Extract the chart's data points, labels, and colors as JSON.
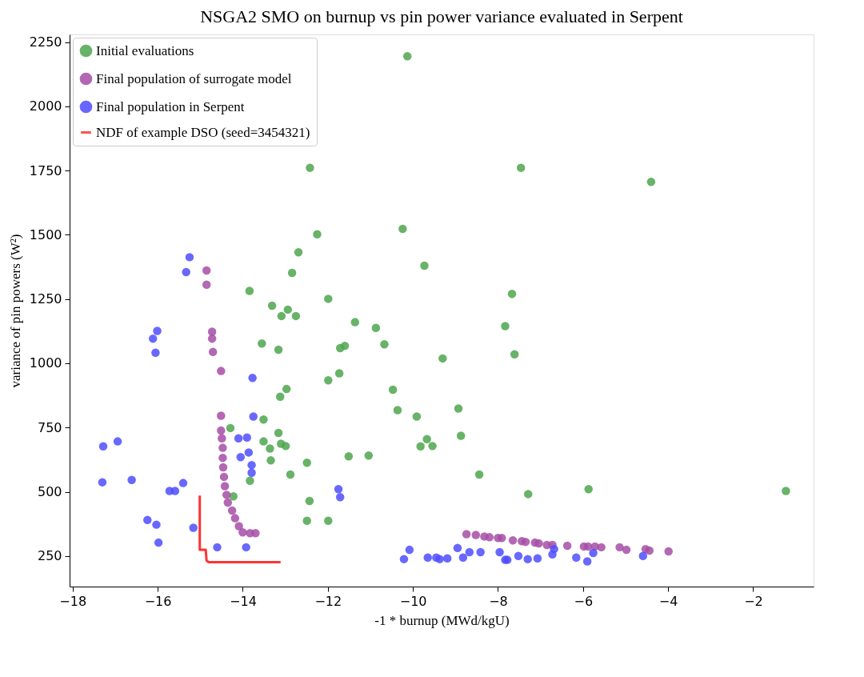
{
  "chart_data": {
    "type": "scatter",
    "title": "NSGA2 SMO on burnup vs pin power variance evaluated in Serpent",
    "xlabel": "-1 * burnup (MWd/kgU)",
    "ylabel": "variance of pin powers (W²)",
    "xlim": [
      -18.07,
      -0.58
    ],
    "ylim": [
      131,
      2280
    ],
    "xticks": [
      -18,
      -16,
      -14,
      -12,
      -10,
      -8,
      -6,
      -4,
      -2
    ],
    "yticks": [
      250,
      500,
      750,
      1000,
      1250,
      1500,
      1750,
      2000,
      2250
    ],
    "grid": false,
    "legend": "top left",
    "series": [
      {
        "name": "Initial evaluations",
        "color": "#4da64d",
        "marker": "circle",
        "x": [
          -10.13,
          -12.42,
          -7.46,
          -4.4,
          -10.24,
          -12.25,
          -9.73,
          -12.69,
          -12.84,
          -13.84,
          -11.99,
          -7.67,
          -13.31,
          -12.94,
          -13.09,
          -12.75,
          -11.36,
          -10.87,
          -7.83,
          -13.55,
          -11.6,
          -11.71,
          -10.67,
          -13.16,
          -9.3,
          -7.61,
          -11.99,
          -11.73,
          -10.47,
          -12.97,
          -13.12,
          -10.36,
          -9.91,
          -8.93,
          -13.51,
          -14.29,
          -13.16,
          -13.51,
          -13.1,
          -12.99,
          -9.67,
          -8.87,
          -9.82,
          -9.54,
          -13.36,
          -13.34,
          -12.49,
          -11.51,
          -11.04,
          -12.88,
          -8.44,
          -13.83,
          -14.22,
          -5.87,
          -1.23,
          -7.29,
          -12.43,
          -12.49,
          -11.99
        ],
        "values": [
          2195,
          1761,
          1761,
          1706,
          1523,
          1502,
          1380,
          1432,
          1352,
          1282,
          1251,
          1270,
          1224,
          1209,
          1184,
          1184,
          1160,
          1138,
          1145,
          1077,
          1068,
          1059,
          1074,
          1053,
          1019,
          1035,
          934,
          961,
          897,
          900,
          870,
          818,
          793,
          824,
          781,
          748,
          729,
          696,
          687,
          678,
          705,
          718,
          677,
          678,
          668,
          622,
          613,
          638,
          641,
          567,
          567,
          543,
          482,
          510,
          503,
          491,
          464,
          387,
          387
        ]
      },
      {
        "name": "Final population of surrogate model",
        "color": "#a64da6",
        "marker": "circle",
        "x": [
          -14.85,
          -14.85,
          -14.72,
          -14.72,
          -14.7,
          -14.51,
          -14.51,
          -14.51,
          -14.49,
          -14.47,
          -14.47,
          -14.46,
          -14.44,
          -14.42,
          -14.38,
          -14.35,
          -14.25,
          -14.18,
          -14.09,
          -14.0,
          -13.83,
          -13.7,
          -8.74,
          -8.52,
          -8.32,
          -8.2,
          -8.0,
          -7.91,
          -7.65,
          -7.44,
          -7.35,
          -7.13,
          -7.04,
          -6.85,
          -6.72,
          -6.37,
          -5.98,
          -5.88,
          -5.72,
          -5.57,
          -5.14,
          -4.98,
          -4.53,
          -4.44,
          -3.99
        ],
        "values": [
          1361,
          1306,
          1123,
          1096,
          1044,
          970,
          796,
          738,
          708,
          671,
          632,
          595,
          558,
          522,
          488,
          458,
          427,
          397,
          366,
          342,
          339,
          339,
          335,
          332,
          326,
          323,
          320,
          320,
          311,
          308,
          305,
          302,
          299,
          293,
          293,
          290,
          287,
          287,
          287,
          284,
          284,
          274,
          277,
          271,
          268
        ]
      },
      {
        "name": "Final population in Serpent",
        "color": "#4d4dff",
        "marker": "circle",
        "x": [
          -15.25,
          -15.33,
          -16.01,
          -16.11,
          -16.05,
          -13.77,
          -13.75,
          -14.1,
          -13.9,
          -14.05,
          -13.86,
          -13.79,
          -13.79,
          -17.28,
          -16.94,
          -17.3,
          -16.61,
          -15.4,
          -15.72,
          -15.59,
          -16.24,
          -16.03,
          -15.16,
          -15.98,
          -14.6,
          -13.92,
          -11.75,
          -11.71,
          -10.08,
          -10.21,
          -9.65,
          -9.45,
          -9.37,
          -9.19,
          -8.95,
          -8.82,
          -8.67,
          -8.41,
          -7.96,
          -7.83,
          -7.78,
          -7.52,
          -7.3,
          -7.07,
          -6.72,
          -6.68,
          -6.16,
          -5.9,
          -5.76,
          -4.59
        ],
        "values": [
          1413,
          1355,
          1126,
          1096,
          1041,
          943,
          793,
          708,
          711,
          635,
          653,
          604,
          574,
          677,
          696,
          537,
          546,
          534,
          503,
          503,
          390,
          372,
          360,
          302,
          284,
          284,
          510,
          479,
          274,
          238,
          244,
          244,
          238,
          241,
          281,
          244,
          265,
          265,
          265,
          235,
          235,
          250,
          238,
          241,
          256,
          277,
          244,
          229,
          262,
          250
        ]
      },
      {
        "name": "NDF of example DSO (seed=3454321)",
        "color": "#ff3333",
        "type": "line",
        "marker": "none",
        "line_style": "solid",
        "x": [
          -15.01,
          -15.01,
          -14.87,
          -14.85,
          -14.8,
          -13.11
        ],
        "values": [
          485,
          274,
          274,
          232,
          226,
          226
        ]
      }
    ]
  }
}
